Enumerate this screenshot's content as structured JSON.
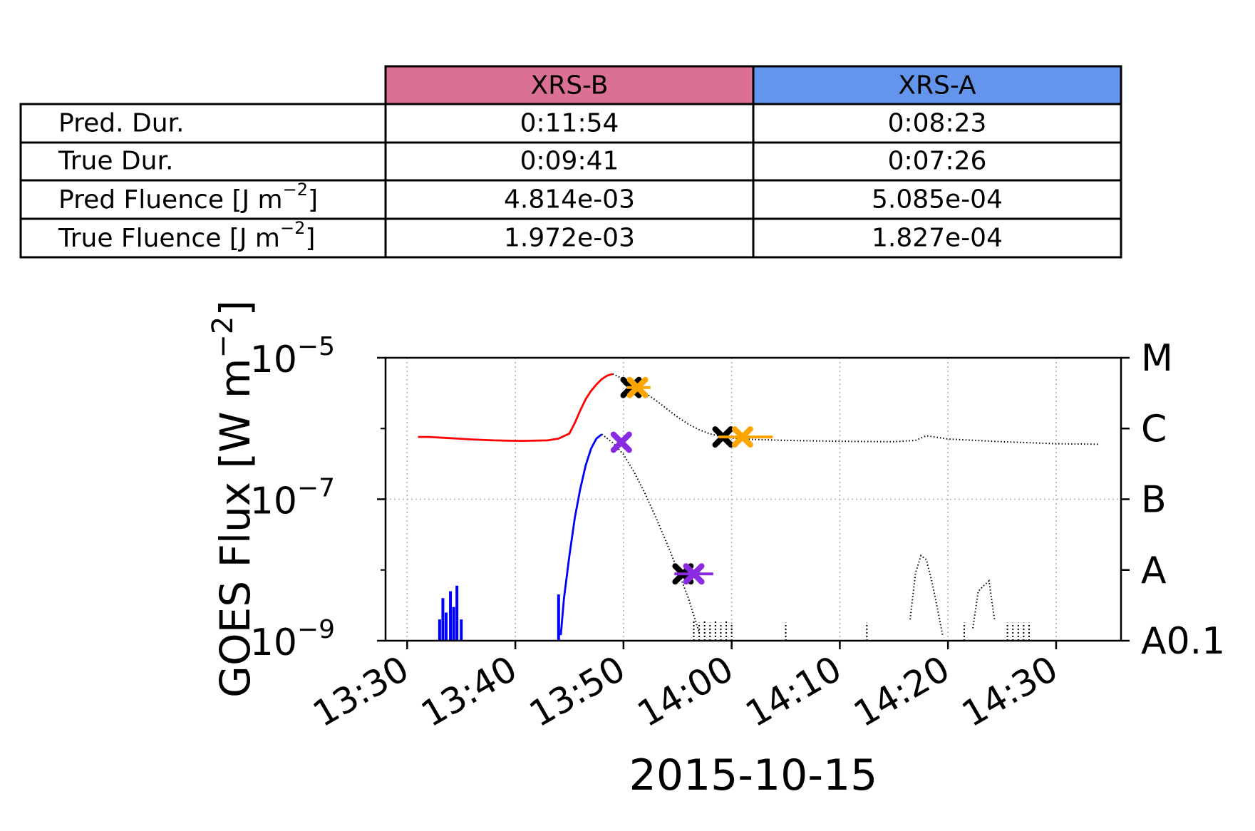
{
  "table": {
    "columns": [
      {
        "label": "XRS-B",
        "color": "#db7093"
      },
      {
        "label": "XRS-A",
        "color": "#6495ed"
      }
    ],
    "rows": [
      {
        "label": "Pred. Dur.",
        "values": [
          "0:11:54",
          "0:08:23"
        ]
      },
      {
        "label": "True Dur.",
        "values": [
          "0:09:41",
          "0:07:26"
        ]
      },
      {
        "label": "Pred Fluence [J m",
        "sup": "−2",
        "close": "]",
        "values": [
          "4.814e-03",
          "5.085e-04"
        ]
      },
      {
        "label": "True Fluence [J m",
        "sup": "−2",
        "close": "]",
        "values": [
          "1.972e-03",
          "1.827e-04"
        ]
      }
    ]
  },
  "chart_data": {
    "type": "line",
    "xlabel": "2015-10-15",
    "ylabel": {
      "text": "GOES Flux [W m",
      "sup": "−2",
      "close": "]"
    },
    "xlim": [
      "13:28",
      "14:36"
    ],
    "ylim": [
      1e-09,
      1e-05
    ],
    "yscale": "log",
    "grid": true,
    "x_ticks": [
      "13:30",
      "13:40",
      "13:50",
      "14:00",
      "14:10",
      "14:20",
      "14:30"
    ],
    "y_ticks": [
      {
        "base": "10",
        "exp": "−9",
        "value": 1e-09
      },
      {
        "base": "10",
        "exp": "−7",
        "value": 1e-07
      },
      {
        "base": "10",
        "exp": "−5",
        "value": 1e-05
      }
    ],
    "right_axis_ticks": [
      {
        "label": "M",
        "value": 1e-05
      },
      {
        "label": "C",
        "value": 1e-06
      },
      {
        "label": "B",
        "value": 1e-07
      },
      {
        "label": "A",
        "value": 1e-08
      },
      {
        "label": "A0.1",
        "value": 1e-09
      }
    ],
    "series": [
      {
        "color": "#ff0000",
        "style": "solid",
        "x": [
          "13:31",
          "13:32",
          "13:34",
          "13:36",
          "13:38",
          "13:40",
          "13:41",
          "13:43",
          "13:44",
          "13:45",
          "13:45.5",
          "13:46",
          "13:46.5",
          "13:47",
          "13:47.5",
          "13:48",
          "13:48.5",
          "13:49"
        ],
        "y": [
          7.6e-07,
          7.6e-07,
          7.3e-07,
          7e-07,
          6.8e-07,
          6.7e-07,
          6.7e-07,
          6.8e-07,
          7.2e-07,
          8.5e-07,
          1.2e-06,
          1.8e-06,
          2.6e-06,
          3.4e-06,
          4.2e-06,
          5e-06,
          5.6e-06,
          5.9e-06
        ]
      },
      {
        "color": "#000000",
        "style": "dotted",
        "x": [
          "13:49",
          "13:50",
          "13:51",
          "13:52",
          "13:53",
          "13:54",
          "13:55",
          "13:56",
          "13:57",
          "13:58",
          "13:59",
          "14:00",
          "14:02",
          "14:05",
          "14:10",
          "14:15",
          "14:17",
          "14:18",
          "14:20",
          "14:25",
          "14:30",
          "14:34"
        ],
        "y": [
          5.9e-06,
          5e-06,
          4e-06,
          3.2e-06,
          2.5e-06,
          1.9e-06,
          1.45e-06,
          1.15e-06,
          9.6e-07,
          8.4e-07,
          7.7e-07,
          7.3e-07,
          7e-07,
          6.8e-07,
          6.6e-07,
          6.5e-07,
          6.8e-07,
          7.9e-07,
          7.1e-07,
          6.5e-07,
          6.1e-07,
          6e-07
        ]
      },
      {
        "color": "#0000ff",
        "style": "solid",
        "x": [
          "13:44.2",
          "13:44.5",
          "13:45",
          "13:45.5",
          "13:46",
          "13:46.5",
          "13:47",
          "13:47.5",
          "13:48"
        ],
        "y": [
          1.2e-09,
          4e-09,
          1.6e-08,
          5.5e-08,
          1.4e-07,
          3e-07,
          5.2e-07,
          7.2e-07,
          8.3e-07
        ]
      },
      {
        "color": "#000000",
        "style": "dotted",
        "x": [
          "13:48",
          "13:49",
          "13:50",
          "13:51",
          "13:52",
          "13:53",
          "13:54",
          "13:55",
          "13:56",
          "13:57"
        ],
        "y": [
          8.3e-07,
          6.3e-07,
          4.3e-07,
          2.4e-07,
          1.2e-07,
          5.5e-08,
          2.4e-08,
          1e-08,
          4e-09,
          1.3e-09
        ]
      },
      {
        "color": "#000000",
        "style": "dotted",
        "x": [
          "14:16.5",
          "14:17",
          "14:17.5",
          "14:18",
          "14:18.5",
          "14:19",
          "14:19.5"
        ],
        "y": [
          2e-09,
          9e-09,
          1.6e-08,
          1.4e-08,
          7e-09,
          3e-09,
          1.2e-09
        ]
      },
      {
        "color": "#000000",
        "style": "dotted",
        "x": [
          "14:22.3",
          "14:22.8",
          "14:23.3",
          "14:23.8",
          "14:24.3"
        ],
        "y": [
          1.5e-09,
          5e-09,
          6e-09,
          7e-09,
          2e-09
        ]
      }
    ],
    "spikes": [
      {
        "color": "#0000ff",
        "x": [
          "13:33",
          "13:33.3",
          "13:33.6",
          "13:34",
          "13:34.3",
          "13:34.6",
          "13:35",
          "13:44"
        ],
        "y": [
          2e-09,
          4e-09,
          2.5e-09,
          5e-09,
          3e-09,
          6e-09,
          2e-09,
          4.5e-09
        ]
      },
      {
        "color": "#000000",
        "x": [
          "13:56.5",
          "13:57",
          "13:57.5",
          "13:58",
          "13:58.5",
          "13:59",
          "13:59.5",
          "14:00",
          "14:05",
          "14:12.5",
          "14:21.5",
          "14:25.5",
          "14:26",
          "14:26.5",
          "14:27",
          "14:27.5"
        ],
        "y": [
          2e-09,
          1.8e-09,
          2e-09,
          1.8e-09,
          2e-09,
          1.8e-09,
          2e-09,
          1.8e-09,
          1.8e-09,
          1.8e-09,
          1.8e-09,
          1.8e-09,
          1.8e-09,
          1.8e-09,
          1.8e-09,
          1.8e-09
        ]
      }
    ],
    "markers": [
      {
        "x": "13:50.7",
        "y": 3.8e-06,
        "color": "#000000",
        "errbar": false
      },
      {
        "x": "13:51.3",
        "y": 3.8e-06,
        "color": "#ffa500",
        "errbar": true,
        "err_minus_min": 1.0,
        "err_plus_min": 1.2
      },
      {
        "x": "13:59.2",
        "y": 7.6e-07,
        "color": "#000000",
        "errbar": false
      },
      {
        "x": "14:01",
        "y": 7.6e-07,
        "color": "#ffa500",
        "errbar": true,
        "err_minus_min": 2.2,
        "err_plus_min": 2.8
      },
      {
        "x": "13:49.8",
        "y": 6.4e-07,
        "color": "#8a2be2",
        "errbar": false
      },
      {
        "x": "13:55.5",
        "y": 8.8e-09,
        "color": "#000000",
        "errbar": false
      },
      {
        "x": "13:56.5",
        "y": 8.8e-09,
        "color": "#8a2be2",
        "errbar": true,
        "err_minus_min": 1.8,
        "err_plus_min": 1.8
      }
    ]
  }
}
